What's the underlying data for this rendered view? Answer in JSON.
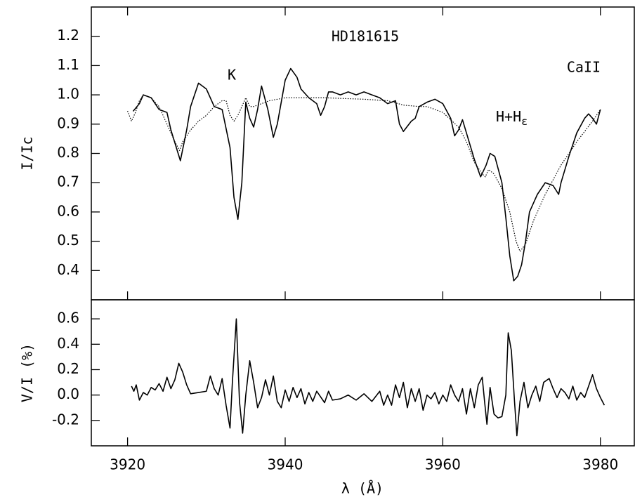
{
  "chart_data": [
    {
      "type": "line",
      "title": "HD181615",
      "annotations": [
        "K",
        "CaII",
        "H+H",
        "ε"
      ],
      "ylabel": "I/Ic",
      "xlim": [
        3915.4,
        3984.3
      ],
      "xticks": [
        3920,
        3940,
        3960,
        3980
      ],
      "ylim": [
        0.3,
        1.3
      ],
      "yticks": [
        0.4,
        0.5,
        0.6,
        0.7,
        0.8,
        0.9,
        {
          "value": 1.0,
          "label": "1.0"
        },
        1.1,
        1.2
      ],
      "series": [
        {
          "color": "#000000",
          "style": "solid",
          "x": [
            3920.7,
            3921.5,
            3922,
            3923,
            3924,
            3925,
            3925.5,
            3926.7,
            3927.5,
            3928,
            3929,
            3930,
            3931,
            3932,
            3933,
            3933.5,
            3934,
            3934.5,
            3935,
            3935.5,
            3936,
            3936.5,
            3937,
            3937.8,
            3938.5,
            3939,
            3940,
            3940.7,
            3941.5,
            3942,
            3943,
            3944,
            3944.5,
            3945,
            3945.5,
            3946,
            3947,
            3948,
            3949,
            3950,
            3951,
            3952,
            3953,
            3954,
            3954.5,
            3955,
            3956,
            3956.5,
            3957,
            3958,
            3959,
            3960,
            3961,
            3961.5,
            3962,
            3962.5,
            3963,
            3964,
            3964.8,
            3965.5,
            3966,
            3966.6,
            3967.5,
            3968,
            3968.5,
            3969,
            3969.5,
            3970,
            3970.5,
            3971,
            3972,
            3973,
            3974,
            3974.7,
            3975,
            3976,
            3977,
            3978,
            3978.5,
            3979,
            3979.5,
            3980
          ],
          "values": [
            0.944,
            0.97,
            1.0,
            0.99,
            0.95,
            0.94,
            0.88,
            0.775,
            0.88,
            0.96,
            1.04,
            1.02,
            0.96,
            0.95,
            0.82,
            0.65,
            0.575,
            0.7,
            0.975,
            0.92,
            0.89,
            0.95,
            1.03,
            0.95,
            0.855,
            0.9,
            1.05,
            1.09,
            1.06,
            1.02,
            0.99,
            0.97,
            0.93,
            0.96,
            1.01,
            1.01,
            1.0,
            1.01,
            1.0,
            1.01,
            1.0,
            0.99,
            0.97,
            0.98,
            0.9,
            0.875,
            0.91,
            0.92,
            0.96,
            0.975,
            0.985,
            0.97,
            0.92,
            0.86,
            0.88,
            0.915,
            0.87,
            0.78,
            0.72,
            0.76,
            0.8,
            0.79,
            0.7,
            0.58,
            0.45,
            0.365,
            0.38,
            0.42,
            0.5,
            0.6,
            0.66,
            0.7,
            0.69,
            0.66,
            0.7,
            0.79,
            0.87,
            0.92,
            0.935,
            0.92,
            0.9,
            0.95
          ]
        },
        {
          "color": "#000000",
          "style": "dotted",
          "x": [
            3920,
            3920.5,
            3921,
            3921.5,
            3922,
            3923,
            3924,
            3925,
            3926,
            3926.6,
            3927,
            3928,
            3929,
            3930,
            3931,
            3932,
            3932.5,
            3933,
            3933.5,
            3934,
            3935,
            3935.5,
            3936,
            3937,
            3938,
            3940,
            3945,
            3950,
            3953,
            3955,
            3957,
            3958,
            3960,
            3962,
            3963,
            3964,
            3965,
            3965.4,
            3965.8,
            3966.5,
            3967.5,
            3968.5,
            3969.3,
            3969.8,
            3970.5,
            3971.5,
            3973,
            3975,
            3977,
            3979,
            3980
          ],
          "values": [
            0.945,
            0.91,
            0.94,
            0.98,
            1.0,
            0.99,
            0.96,
            0.9,
            0.84,
            0.81,
            0.84,
            0.88,
            0.91,
            0.93,
            0.96,
            0.98,
            0.98,
            0.93,
            0.91,
            0.93,
            0.99,
            0.96,
            0.96,
            0.97,
            0.98,
            0.99,
            0.99,
            0.985,
            0.98,
            0.965,
            0.96,
            0.96,
            0.94,
            0.89,
            0.84,
            0.77,
            0.73,
            0.72,
            0.745,
            0.73,
            0.68,
            0.6,
            0.5,
            0.465,
            0.49,
            0.57,
            0.66,
            0.76,
            0.84,
            0.91,
            0.95
          ]
        }
      ]
    },
    {
      "type": "line",
      "ylabel": "V/I (%)",
      "xlabel": "λ  (Å)",
      "xlim": [
        3915.4,
        3984.3
      ],
      "xticks": [
        3920,
        3940,
        3960,
        3980
      ],
      "ylim": [
        -0.4,
        0.75
      ],
      "yticks": [
        -0.2,
        {
          "value": 0.0,
          "label": "0.0"
        },
        0.2,
        0.4,
        0.6
      ],
      "series": [
        {
          "color": "#000000",
          "style": "solid",
          "x": [
            3920.5,
            3920.8,
            3921.1,
            3921.5,
            3922,
            3922.5,
            3923,
            3923.5,
            3924,
            3924.5,
            3925,
            3925.5,
            3926,
            3926.5,
            3927,
            3927.5,
            3928,
            3929,
            3930,
            3930.5,
            3931,
            3931.5,
            3932,
            3932.5,
            3933,
            3933.3,
            3933.8,
            3934.2,
            3934.6,
            3935,
            3935.5,
            3936,
            3936.5,
            3937,
            3937.5,
            3938,
            3938.5,
            3939,
            3939.5,
            3940,
            3940.5,
            3941,
            3941.5,
            3942,
            3942.5,
            3943,
            3943.5,
            3944,
            3945,
            3945.5,
            3946,
            3947,
            3948,
            3949,
            3950,
            3951,
            3952,
            3952.5,
            3953,
            3953.5,
            3954,
            3954.5,
            3955,
            3955.5,
            3956,
            3956.5,
            3957,
            3957.5,
            3958,
            3958.5,
            3959,
            3959.5,
            3960,
            3960.5,
            3961,
            3961.5,
            3962,
            3962.5,
            3963,
            3963.5,
            3964,
            3964.5,
            3965,
            3965.3,
            3965.6,
            3966,
            3966.5,
            3967,
            3967.5,
            3968,
            3968.3,
            3968.7,
            3969.1,
            3969.4,
            3969.8,
            3970.3,
            3970.8,
            3971.3,
            3971.8,
            3972.3,
            3972.8,
            3973.5,
            3974,
            3974.5,
            3975,
            3975.5,
            3976,
            3976.5,
            3977,
            3977.5,
            3978,
            3978.5,
            3979,
            3979.5,
            3980,
            3980.5
          ],
          "values": [
            0.07,
            0.03,
            0.08,
            -0.04,
            0.02,
            0.0,
            0.06,
            0.04,
            0.09,
            0.03,
            0.14,
            0.05,
            0.12,
            0.25,
            0.18,
            0.08,
            0.01,
            0.02,
            0.03,
            0.15,
            0.05,
            0.0,
            0.13,
            -0.08,
            -0.26,
            0.1,
            0.6,
            -0.05,
            -0.3,
            0.0,
            0.27,
            0.1,
            -0.1,
            -0.02,
            0.12,
            0.0,
            0.15,
            -0.05,
            -0.1,
            0.04,
            -0.05,
            0.06,
            -0.02,
            0.05,
            -0.07,
            0.02,
            -0.05,
            0.03,
            -0.06,
            0.03,
            -0.04,
            -0.03,
            0.0,
            -0.04,
            0.01,
            -0.05,
            0.03,
            -0.08,
            0.0,
            -0.08,
            0.08,
            -0.02,
            0.1,
            -0.1,
            0.05,
            -0.05,
            0.05,
            -0.12,
            0.0,
            -0.03,
            0.02,
            -0.07,
            0.0,
            -0.05,
            0.08,
            0.0,
            -0.05,
            0.05,
            -0.15,
            0.05,
            -0.1,
            0.08,
            0.14,
            -0.05,
            -0.23,
            0.06,
            -0.15,
            -0.18,
            -0.17,
            0.0,
            0.49,
            0.35,
            -0.05,
            -0.32,
            -0.05,
            0.1,
            -0.1,
            0.0,
            0.07,
            -0.05,
            0.1,
            0.13,
            0.05,
            -0.02,
            0.05,
            0.02,
            -0.03,
            0.07,
            -0.04,
            0.02,
            -0.02,
            0.07,
            0.16,
            0.05,
            -0.02,
            -0.08
          ]
        }
      ]
    }
  ]
}
